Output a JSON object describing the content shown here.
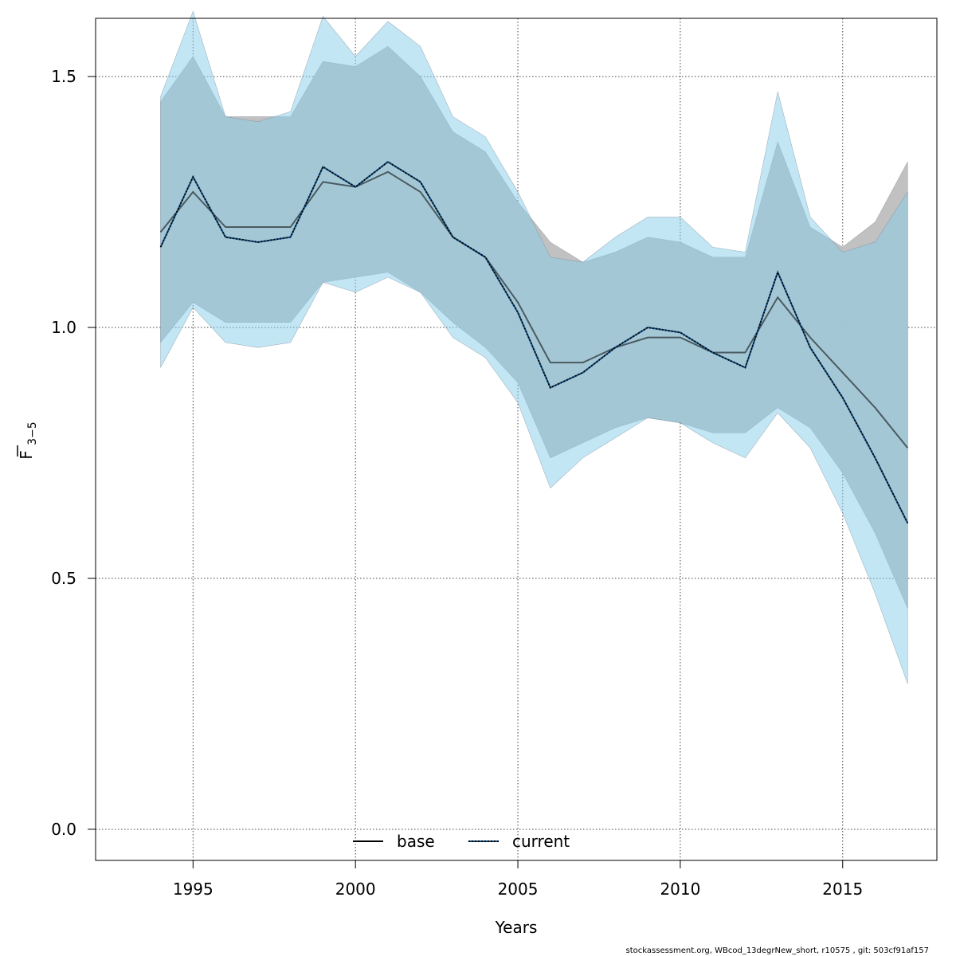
{
  "chart_data": {
    "type": "line",
    "xlabel": "Years",
    "ylabel": {
      "main": "F",
      "sub": "3−5"
    },
    "xlim": [
      1992.0,
      2017.9
    ],
    "ylim": [
      -0.062,
      1.616
    ],
    "xticks": [
      1995,
      2000,
      2005,
      2010,
      2015
    ],
    "yticks": [
      0.0,
      0.5,
      1.0,
      1.5
    ],
    "ytick_labels": [
      "0.0",
      "0.5",
      "1.0",
      "1.5"
    ],
    "grid": true,
    "legend_position": "bottom",
    "x": [
      1994,
      1995,
      1996,
      1997,
      1998,
      1999,
      2000,
      2001,
      2002,
      2003,
      2004,
      2005,
      2006,
      2007,
      2008,
      2009,
      2010,
      2011,
      2012,
      2013,
      2014,
      2015,
      2016,
      2017
    ],
    "series": [
      {
        "name": "base",
        "line_style": "solid",
        "line_color": "#000000",
        "band_color": "#bebebe",
        "values": [
          1.19,
          1.27,
          1.2,
          1.2,
          1.2,
          1.29,
          1.28,
          1.31,
          1.27,
          1.18,
          1.14,
          1.05,
          0.93,
          0.93,
          0.96,
          0.98,
          0.98,
          0.95,
          0.95,
          1.06,
          0.98,
          0.91,
          0.84,
          0.76
        ],
        "lower": [
          0.97,
          1.05,
          1.01,
          1.01,
          1.01,
          1.09,
          1.1,
          1.11,
          1.07,
          1.01,
          0.96,
          0.89,
          0.74,
          0.77,
          0.8,
          0.82,
          0.81,
          0.79,
          0.79,
          0.84,
          0.8,
          0.71,
          0.59,
          0.44
        ],
        "upper": [
          1.45,
          1.54,
          1.42,
          1.42,
          1.42,
          1.53,
          1.52,
          1.56,
          1.5,
          1.39,
          1.35,
          1.25,
          1.17,
          1.13,
          1.15,
          1.18,
          1.17,
          1.14,
          1.14,
          1.37,
          1.2,
          1.16,
          1.21,
          1.33
        ]
      },
      {
        "name": "current",
        "line_style": "dotted",
        "line_color": "#0a4f8a",
        "band_color": "#87ceeb",
        "values": [
          1.16,
          1.3,
          1.18,
          1.17,
          1.18,
          1.32,
          1.28,
          1.33,
          1.29,
          1.18,
          1.14,
          1.03,
          0.88,
          0.91,
          0.96,
          1.0,
          0.99,
          0.95,
          0.92,
          1.11,
          0.96,
          0.86,
          0.74,
          0.61
        ],
        "lower": [
          0.92,
          1.04,
          0.97,
          0.96,
          0.97,
          1.09,
          1.07,
          1.1,
          1.07,
          0.98,
          0.94,
          0.85,
          0.68,
          0.74,
          0.78,
          0.82,
          0.81,
          0.77,
          0.74,
          0.83,
          0.76,
          0.63,
          0.47,
          0.29
        ],
        "upper": [
          1.46,
          1.63,
          1.42,
          1.41,
          1.43,
          1.62,
          1.54,
          1.61,
          1.56,
          1.42,
          1.38,
          1.27,
          1.14,
          1.13,
          1.18,
          1.22,
          1.22,
          1.16,
          1.15,
          1.47,
          1.22,
          1.15,
          1.17,
          1.27
        ]
      }
    ],
    "footer": "stockassessment.org, WBcod_13degrNew_short, r10575 , git: 503cf91af157"
  }
}
